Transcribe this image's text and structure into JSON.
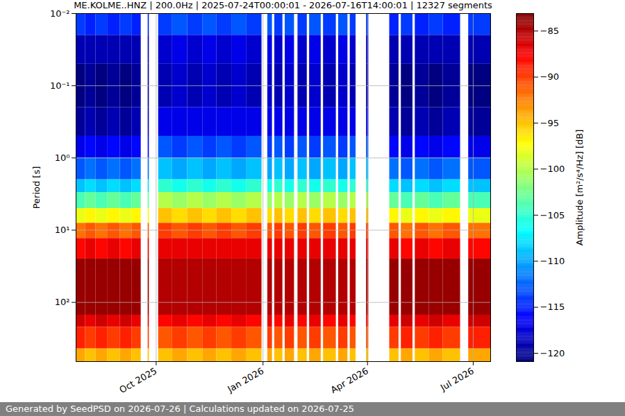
{
  "chart_data": {
    "type": "heatmap",
    "title": "ME.KOLME..HNZ | 200.0Hz | 2025-07-24T00:00:01 - 2026-07-16T14:00:01 | 12327 segments",
    "y_label": "Period [s]",
    "caption": "Generated by SeedPSD on 2026-07-26 | Calculations updated on 2026-07-25",
    "log": "y",
    "grid": true,
    "color": "jet",
    "xlim": [
      "2025-07-24",
      "2026-07-16"
    ],
    "xticks": [
      {
        "value": "2025-10-01",
        "label": "Oct 2025"
      },
      {
        "value": "2026-01-01",
        "label": "Jan 2026"
      },
      {
        "value": "2026-04-01",
        "label": "Apr 2026"
      },
      {
        "value": "2026-07-01",
        "label": "Jul 2026"
      }
    ],
    "ylim": [
      0.01,
      660
    ],
    "yticks": [
      {
        "value": 0.01,
        "label": "10⁻²"
      },
      {
        "value": 0.1,
        "label": "10⁻¹"
      },
      {
        "value": 1,
        "label": "10⁰"
      },
      {
        "value": 10,
        "label": "10¹"
      },
      {
        "value": 100,
        "label": "10²"
      }
    ],
    "x": [
      "2025-07-24",
      "2025-08-01",
      "2025-08-10",
      "2025-08-20",
      "2025-08-31",
      "2025-09-10",
      "2025-09-18",
      "2025-09-24",
      "2025-09-25",
      "2025-10-03",
      "2025-10-15",
      "2025-10-28",
      "2025-11-10",
      "2025-11-22",
      "2025-12-05",
      "2025-12-18",
      "2025-12-31",
      "2026-01-05",
      "2026-01-09",
      "2026-01-11",
      "2026-01-18",
      "2026-01-20",
      "2026-01-28",
      "2026-01-31",
      "2026-02-08",
      "2026-02-10",
      "2026-02-20",
      "2026-02-22",
      "2026-03-05",
      "2026-03-07",
      "2026-03-15",
      "2026-03-17",
      "2026-03-22",
      "2026-03-31",
      "2026-04-02",
      "2026-04-20",
      "2026-04-28",
      "2026-04-30",
      "2026-05-10",
      "2026-05-12",
      "2026-05-24",
      "2026-06-05",
      "2026-06-20",
      "2026-06-27",
      "2026-07-16"
    ],
    "y": [
      0.01,
      0.02,
      0.05,
      0.2,
      0.5,
      1,
      2,
      3,
      5,
      8,
      13,
      25,
      150,
      220,
      440,
      660
    ],
    "values": [
      [
        -114,
        -119,
        -121,
        -120,
        -117,
        -113,
        -109,
        -104,
        -98,
        -92,
        -88,
        -84,
        -86,
        -89,
        -94
      ],
      [
        -115,
        -119,
        -120,
        -119,
        -116,
        -112,
        -108,
        -103,
        -97,
        -91,
        -87,
        -84,
        -87,
        -90,
        -95
      ],
      [
        -114,
        -119,
        -121,
        -120,
        -117,
        -113,
        -109,
        -104,
        -98,
        -92,
        -88,
        -84,
        -86,
        -89,
        -94
      ],
      [
        -115,
        -119,
        -120,
        -119,
        -116,
        -112,
        -108,
        -103,
        -97,
        -91,
        -87,
        -84,
        -87,
        -90,
        -95
      ],
      [
        -114,
        -119,
        -121,
        -120,
        -117,
        -113,
        -109,
        -104,
        -98,
        -92,
        -88,
        -84,
        -86,
        -89,
        -94
      ],
      [
        -115,
        -119,
        -120,
        -119,
        -116,
        -112,
        -108,
        -103,
        -97,
        -91,
        -87,
        -84,
        -87,
        -90,
        -95
      ],
      null,
      [
        -115,
        -119,
        -120,
        -119,
        -116,
        -112,
        -108,
        -103,
        -97,
        -91,
        -87,
        -84,
        -87,
        -90,
        -95
      ],
      null,
      [
        -114,
        -118,
        -119,
        -117,
        -113,
        -109,
        -105,
        -100,
        -95,
        -90,
        -87,
        -85,
        -88,
        -91,
        -95
      ],
      [
        -113,
        -117,
        -118,
        -117,
        -114,
        -110,
        -106,
        -101,
        -96,
        -91,
        -87,
        -85,
        -87,
        -90,
        -94
      ],
      [
        -114,
        -118,
        -119,
        -117,
        -113,
        -109,
        -105,
        -100,
        -95,
        -90,
        -87,
        -85,
        -88,
        -91,
        -95
      ],
      [
        -113,
        -117,
        -118,
        -117,
        -114,
        -110,
        -106,
        -101,
        -96,
        -91,
        -87,
        -85,
        -87,
        -90,
        -94
      ],
      [
        -114,
        -118,
        -119,
        -117,
        -113,
        -109,
        -105,
        -100,
        -95,
        -90,
        -87,
        -85,
        -88,
        -91,
        -95
      ],
      [
        -113,
        -117,
        -118,
        -117,
        -114,
        -110,
        -106,
        -101,
        -96,
        -91,
        -87,
        -85,
        -87,
        -90,
        -94
      ],
      [
        -114,
        -118,
        -119,
        -117,
        -113,
        -109,
        -105,
        -100,
        -95,
        -90,
        -87,
        -85,
        -88,
        -91,
        -95
      ],
      null,
      [
        -113,
        -117,
        -118,
        -117,
        -114,
        -110,
        -106,
        -101,
        -96,
        -91,
        -87,
        -85,
        -87,
        -90,
        -94
      ],
      null,
      [
        -114,
        -118,
        -119,
        -117,
        -113,
        -109,
        -105,
        -100,
        -95,
        -90,
        -87,
        -85,
        -88,
        -91,
        -95
      ],
      null,
      [
        -113,
        -117,
        -118,
        -117,
        -114,
        -110,
        -106,
        -101,
        -96,
        -91,
        -87,
        -85,
        -87,
        -90,
        -94
      ],
      null,
      [
        -114,
        -118,
        -119,
        -117,
        -113,
        -109,
        -105,
        -100,
        -95,
        -90,
        -87,
        -85,
        -88,
        -91,
        -95
      ],
      null,
      [
        -113,
        -117,
        -118,
        -117,
        -114,
        -110,
        -106,
        -101,
        -96,
        -91,
        -87,
        -85,
        -87,
        -90,
        -94
      ],
      null,
      [
        -114,
        -118,
        -119,
        -117,
        -113,
        -109,
        -105,
        -100,
        -95,
        -90,
        -87,
        -85,
        -88,
        -91,
        -95
      ],
      null,
      [
        -113,
        -117,
        -118,
        -117,
        -114,
        -110,
        -106,
        -101,
        -96,
        -91,
        -87,
        -85,
        -87,
        -90,
        -94
      ],
      null,
      [
        -114,
        -118,
        -119,
        -117,
        -113,
        -109,
        -105,
        -100,
        -95,
        -90,
        -87,
        -85,
        -88,
        -91,
        -95
      ],
      null,
      [
        -114,
        -118,
        -119,
        -117,
        -113,
        -109,
        -105,
        -100,
        -95,
        -90,
        -87,
        -85,
        -88,
        -91,
        -95
      ],
      null,
      [
        -115,
        -119,
        -120,
        -119,
        -116,
        -112,
        -108,
        -103,
        -97,
        -91,
        -87,
        -84,
        -87,
        -90,
        -95
      ],
      null,
      [
        -114,
        -119,
        -121,
        -120,
        -117,
        -113,
        -109,
        -104,
        -98,
        -92,
        -88,
        -84,
        -86,
        -89,
        -94
      ],
      null,
      [
        -115,
        -119,
        -120,
        -119,
        -116,
        -112,
        -108,
        -103,
        -97,
        -91,
        -87,
        -84,
        -87,
        -90,
        -95
      ],
      [
        -114,
        -119,
        -121,
        -120,
        -117,
        -113,
        -109,
        -104,
        -98,
        -92,
        -88,
        -84,
        -86,
        -89,
        -94
      ],
      [
        -115,
        -119,
        -120,
        -119,
        -116,
        -112,
        -108,
        -103,
        -97,
        -91,
        -87,
        -84,
        -87,
        -90,
        -95
      ],
      null,
      [
        -114,
        -119,
        -121,
        -120,
        -117,
        -113,
        -109,
        -104,
        -98,
        -92,
        -88,
        -84,
        -86,
        -89,
        -94
      ]
    ],
    "colorbar": {
      "label": "Amplitude [m²/s⁴/Hz] [dB]",
      "lim": [
        -120.9,
        -83.1
      ],
      "ticks": [
        {
          "value": -120,
          "label": "−120"
        },
        {
          "value": -115,
          "label": "−115"
        },
        {
          "value": -110,
          "label": "−110"
        },
        {
          "value": -105,
          "label": "−105"
        },
        {
          "value": -100,
          "label": "−100"
        },
        {
          "value": -95,
          "label": "−95"
        },
        {
          "value": -90,
          "label": "−90"
        },
        {
          "value": -85,
          "label": "−85"
        }
      ]
    }
  }
}
